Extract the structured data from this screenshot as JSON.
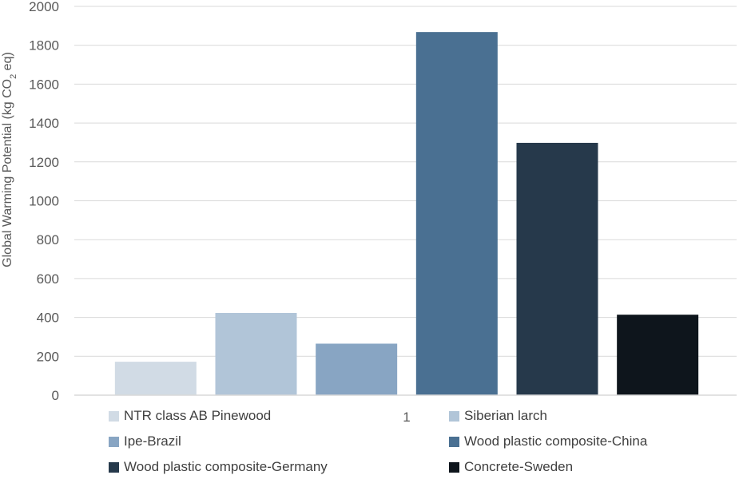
{
  "chart_data": {
    "type": "bar",
    "categories": [
      "1"
    ],
    "series": [
      {
        "name": "NTR class AB Pinewood",
        "values": [
          172
        ],
        "color": "#d1dbe5"
      },
      {
        "name": "Siberian larch",
        "values": [
          423
        ],
        "color": "#b1c5d8"
      },
      {
        "name": "Ipe-Brazil",
        "values": [
          265
        ],
        "color": "#88a5c3"
      },
      {
        "name": "Wood plastic composite-China",
        "values": [
          1868
        ],
        "color": "#4a7092"
      },
      {
        "name": "Wood plastic composite-Germany",
        "values": [
          1298
        ],
        "color": "#26394b"
      },
      {
        "name": "Concrete-Sweden",
        "values": [
          414
        ],
        "color": "#0e151c"
      }
    ],
    "ylabel": {
      "main": "Global Warming Potential (kg CO",
      "sub": "2",
      "tail": " eq)"
    },
    "xlabel": "",
    "ylim": [
      0,
      2000
    ],
    "yticks": [
      "0",
      "200",
      "400",
      "600",
      "800",
      "1000",
      "1200",
      "1400",
      "1600",
      "1800",
      "2000"
    ],
    "grid": true,
    "legend_position": "bottom"
  }
}
